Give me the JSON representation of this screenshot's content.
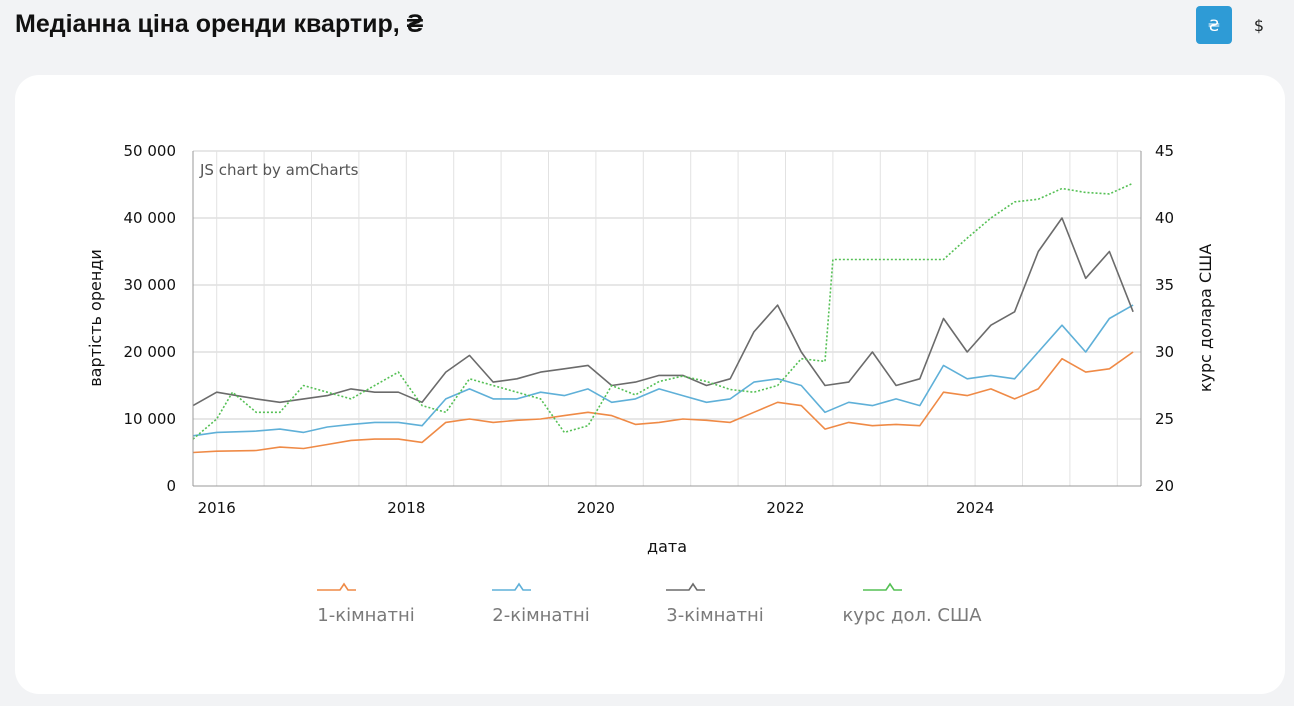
{
  "header": {
    "title": "Медіанна ціна оренди квартир, ₴",
    "currency_buttons": [
      {
        "label": "₴",
        "active": true
      },
      {
        "label": "$",
        "active": false
      }
    ]
  },
  "colors": {
    "accent": "#2e9bd6",
    "series_1": "#ef8a46",
    "series_2": "#5fb0d8",
    "series_3": "#6b6b6b",
    "series_4": "#55c055"
  },
  "chart_data": {
    "type": "line",
    "credit": "JS chart by amCharts",
    "xlabel": "дата",
    "ylabel": "вартість оренди",
    "y2label": "курс долара США",
    "ylim": [
      0,
      50000
    ],
    "y2lim": [
      20,
      45
    ],
    "xlim": [
      "2015-10-01",
      "2025-10-01"
    ],
    "grid": true,
    "legend_position": "bottom",
    "x_ticks": [
      "2016",
      "2018",
      "2020",
      "2022",
      "2024"
    ],
    "y_ticks": [
      "0",
      "10 000",
      "20 000",
      "30 000",
      "40 000",
      "50 000"
    ],
    "y2_ticks": [
      "20",
      "25",
      "30",
      "35",
      "40",
      "45"
    ],
    "series": [
      {
        "name": "1-кімнатні",
        "axis": "left",
        "color": "#ef8a46",
        "style": "solid",
        "x": [
          "2015-10",
          "2016-01",
          "2016-06",
          "2016-09",
          "2016-12",
          "2017-03",
          "2017-06",
          "2017-09",
          "2017-12",
          "2018-03",
          "2018-06",
          "2018-09",
          "2018-12",
          "2019-03",
          "2019-06",
          "2019-09",
          "2019-12",
          "2020-03",
          "2020-06",
          "2020-09",
          "2020-12",
          "2021-03",
          "2021-06",
          "2021-09",
          "2021-12",
          "2022-03",
          "2022-06",
          "2022-09",
          "2022-12",
          "2023-03",
          "2023-06",
          "2023-09",
          "2023-12",
          "2024-03",
          "2024-06",
          "2024-09",
          "2024-12",
          "2025-03",
          "2025-06",
          "2025-09"
        ],
        "y": [
          5000,
          5200,
          5300,
          5800,
          5600,
          6200,
          6800,
          7000,
          7000,
          6500,
          9500,
          10000,
          9500,
          9800,
          10000,
          10500,
          11000,
          10500,
          9200,
          9500,
          10000,
          9800,
          9500,
          11000,
          12500,
          12000,
          8500,
          9500,
          9000,
          9200,
          9000,
          14000,
          13500,
          14500,
          13000,
          14500,
          19000,
          17000,
          17500,
          20000
        ]
      },
      {
        "name": "2-кімнатні",
        "axis": "left",
        "color": "#5fb0d8",
        "style": "solid",
        "x": [
          "2015-10",
          "2016-01",
          "2016-06",
          "2016-09",
          "2016-12",
          "2017-03",
          "2017-06",
          "2017-09",
          "2017-12",
          "2018-03",
          "2018-06",
          "2018-09",
          "2018-12",
          "2019-03",
          "2019-06",
          "2019-09",
          "2019-12",
          "2020-03",
          "2020-06",
          "2020-09",
          "2020-12",
          "2021-03",
          "2021-06",
          "2021-09",
          "2021-12",
          "2022-03",
          "2022-06",
          "2022-09",
          "2022-12",
          "2023-03",
          "2023-06",
          "2023-09",
          "2023-12",
          "2024-03",
          "2024-06",
          "2024-09",
          "2024-12",
          "2025-03",
          "2025-06",
          "2025-09"
        ],
        "y": [
          7500,
          8000,
          8200,
          8500,
          8000,
          8800,
          9200,
          9500,
          9500,
          9000,
          13000,
          14500,
          13000,
          13000,
          14000,
          13500,
          14500,
          12500,
          13000,
          14500,
          13500,
          12500,
          13000,
          15500,
          16000,
          15000,
          11000,
          12500,
          12000,
          13000,
          12000,
          18000,
          16000,
          16500,
          16000,
          20000,
          24000,
          20000,
          25000,
          27000
        ]
      },
      {
        "name": "3-кімнатні",
        "axis": "left",
        "color": "#6b6b6b",
        "style": "solid",
        "x": [
          "2015-10",
          "2016-01",
          "2016-06",
          "2016-09",
          "2016-12",
          "2017-03",
          "2017-06",
          "2017-09",
          "2017-12",
          "2018-03",
          "2018-06",
          "2018-09",
          "2018-12",
          "2019-03",
          "2019-06",
          "2019-09",
          "2019-12",
          "2020-03",
          "2020-06",
          "2020-09",
          "2020-12",
          "2021-03",
          "2021-06",
          "2021-09",
          "2021-12",
          "2022-03",
          "2022-06",
          "2022-09",
          "2022-12",
          "2023-03",
          "2023-06",
          "2023-09",
          "2023-12",
          "2024-03",
          "2024-06",
          "2024-09",
          "2024-12",
          "2025-03",
          "2025-06",
          "2025-09"
        ],
        "y": [
          12000,
          14000,
          13000,
          12500,
          13000,
          13500,
          14500,
          14000,
          14000,
          12500,
          17000,
          19500,
          15500,
          16000,
          17000,
          17500,
          18000,
          15000,
          15500,
          16500,
          16500,
          15000,
          16000,
          23000,
          27000,
          20000,
          15000,
          15500,
          20000,
          15000,
          16000,
          25000,
          20000,
          24000,
          26000,
          35000,
          40000,
          31000,
          35000,
          26000
        ]
      },
      {
        "name": "курс дол. США",
        "axis": "right",
        "color": "#55c055",
        "style": "dotted",
        "x": [
          "2015-10",
          "2016-01",
          "2016-03",
          "2016-06",
          "2016-09",
          "2016-12",
          "2017-03",
          "2017-06",
          "2017-09",
          "2017-12",
          "2018-03",
          "2018-06",
          "2018-09",
          "2018-12",
          "2019-03",
          "2019-06",
          "2019-09",
          "2019-12",
          "2020-03",
          "2020-06",
          "2020-09",
          "2020-12",
          "2021-03",
          "2021-06",
          "2021-09",
          "2021-12",
          "2022-03",
          "2022-06",
          "2022-07",
          "2022-09",
          "2022-12",
          "2023-03",
          "2023-06",
          "2023-09",
          "2023-12",
          "2024-03",
          "2024-06",
          "2024-09",
          "2024-12",
          "2025-03",
          "2025-06",
          "2025-09"
        ],
        "y": [
          23.5,
          25,
          27,
          25.5,
          25.5,
          27.5,
          27,
          26.5,
          27.5,
          28.5,
          26,
          25.5,
          28,
          27.5,
          27,
          26.5,
          24,
          24.5,
          27.5,
          26.8,
          27.8,
          28.2,
          27.8,
          27.2,
          27,
          27.5,
          29.5,
          29.3,
          36.9,
          36.9,
          36.9,
          36.9,
          36.9,
          36.9,
          38.5,
          40,
          41.2,
          41.4,
          42.2,
          41.9,
          41.8,
          42.6
        ]
      }
    ]
  }
}
